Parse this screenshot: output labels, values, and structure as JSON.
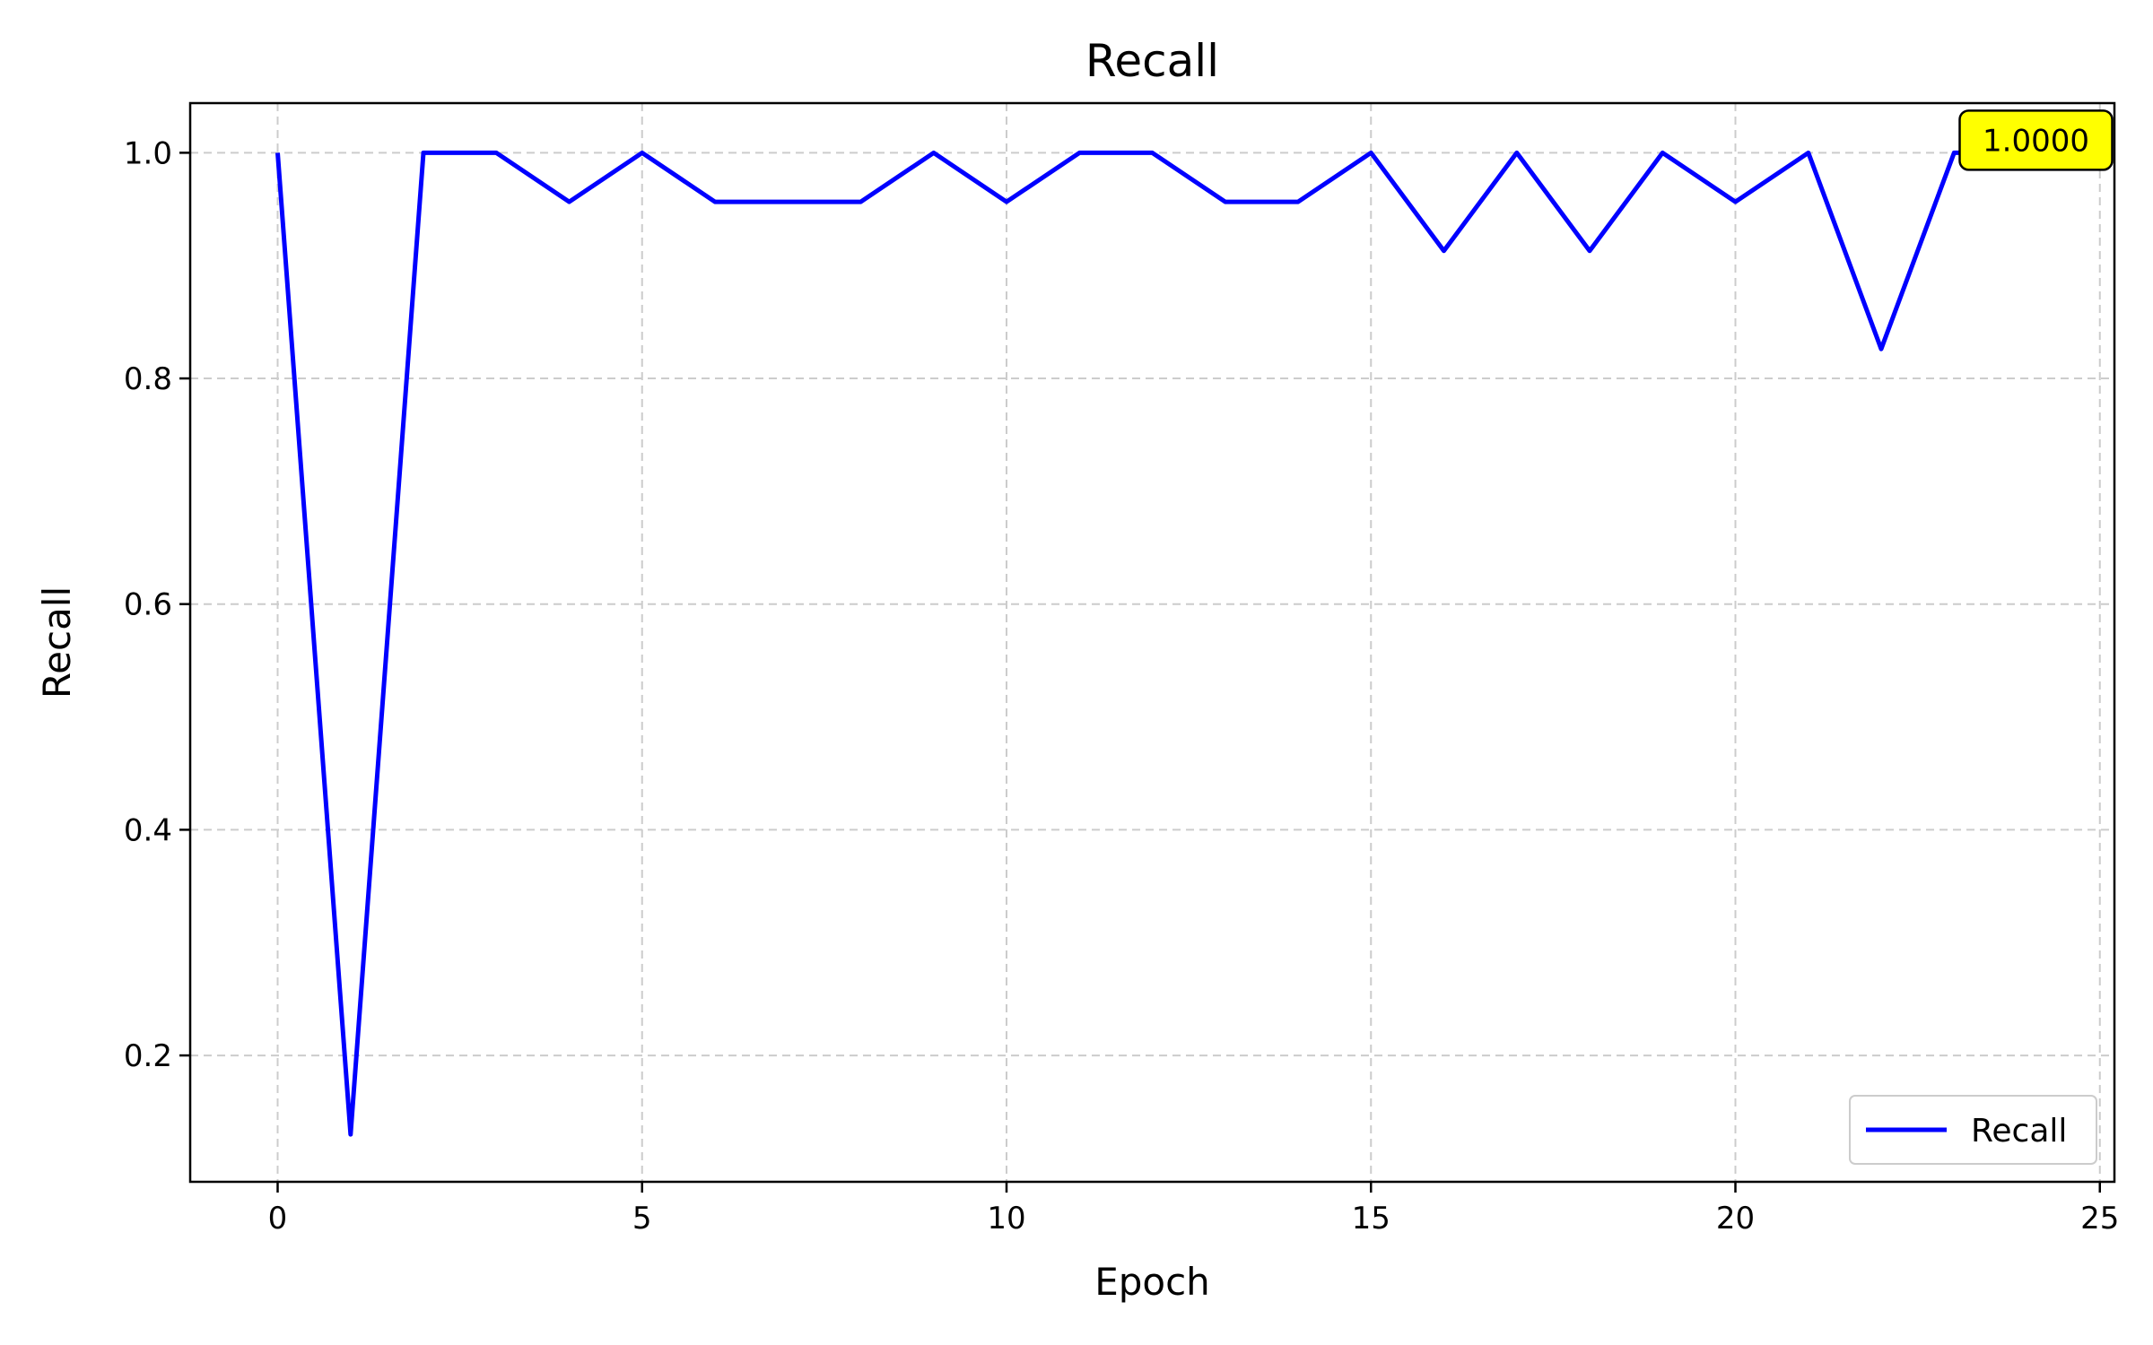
{
  "chart_data": {
    "type": "line",
    "title": "Recall",
    "xlabel": "Epoch",
    "ylabel": "Recall",
    "xlim": [
      -1.2,
      25.2
    ],
    "ylim": [
      0.088,
      1.044
    ],
    "x_ticks": [
      0,
      5,
      10,
      15,
      20,
      25
    ],
    "y_ticks": [
      0.2,
      0.4,
      0.6,
      0.8,
      1.0
    ],
    "x_tick_labels": [
      "0",
      "5",
      "10",
      "15",
      "20",
      "25"
    ],
    "y_tick_labels": [
      "0.2",
      "0.4",
      "0.6",
      "0.8",
      "1.0"
    ],
    "grid": true,
    "legend_position": "lower-right",
    "series": [
      {
        "name": "Recall",
        "color": "#0000ff",
        "x": [
          0,
          1,
          2,
          3,
          4,
          5,
          6,
          7,
          8,
          9,
          10,
          11,
          12,
          13,
          14,
          15,
          16,
          17,
          18,
          19,
          20,
          21,
          22,
          23,
          24
        ],
        "y": [
          1.0,
          0.13,
          1.0,
          1.0,
          0.9565,
          1.0,
          0.9565,
          0.9565,
          0.9565,
          1.0,
          0.9565,
          1.0,
          1.0,
          0.9565,
          0.9565,
          1.0,
          0.913,
          1.0,
          0.913,
          1.0,
          0.9565,
          1.0,
          0.8261,
          1.0,
          1.0
        ]
      }
    ],
    "annotation": {
      "text": "1.0000",
      "x": 24,
      "y": 1.0,
      "background": "#ffff00"
    }
  }
}
